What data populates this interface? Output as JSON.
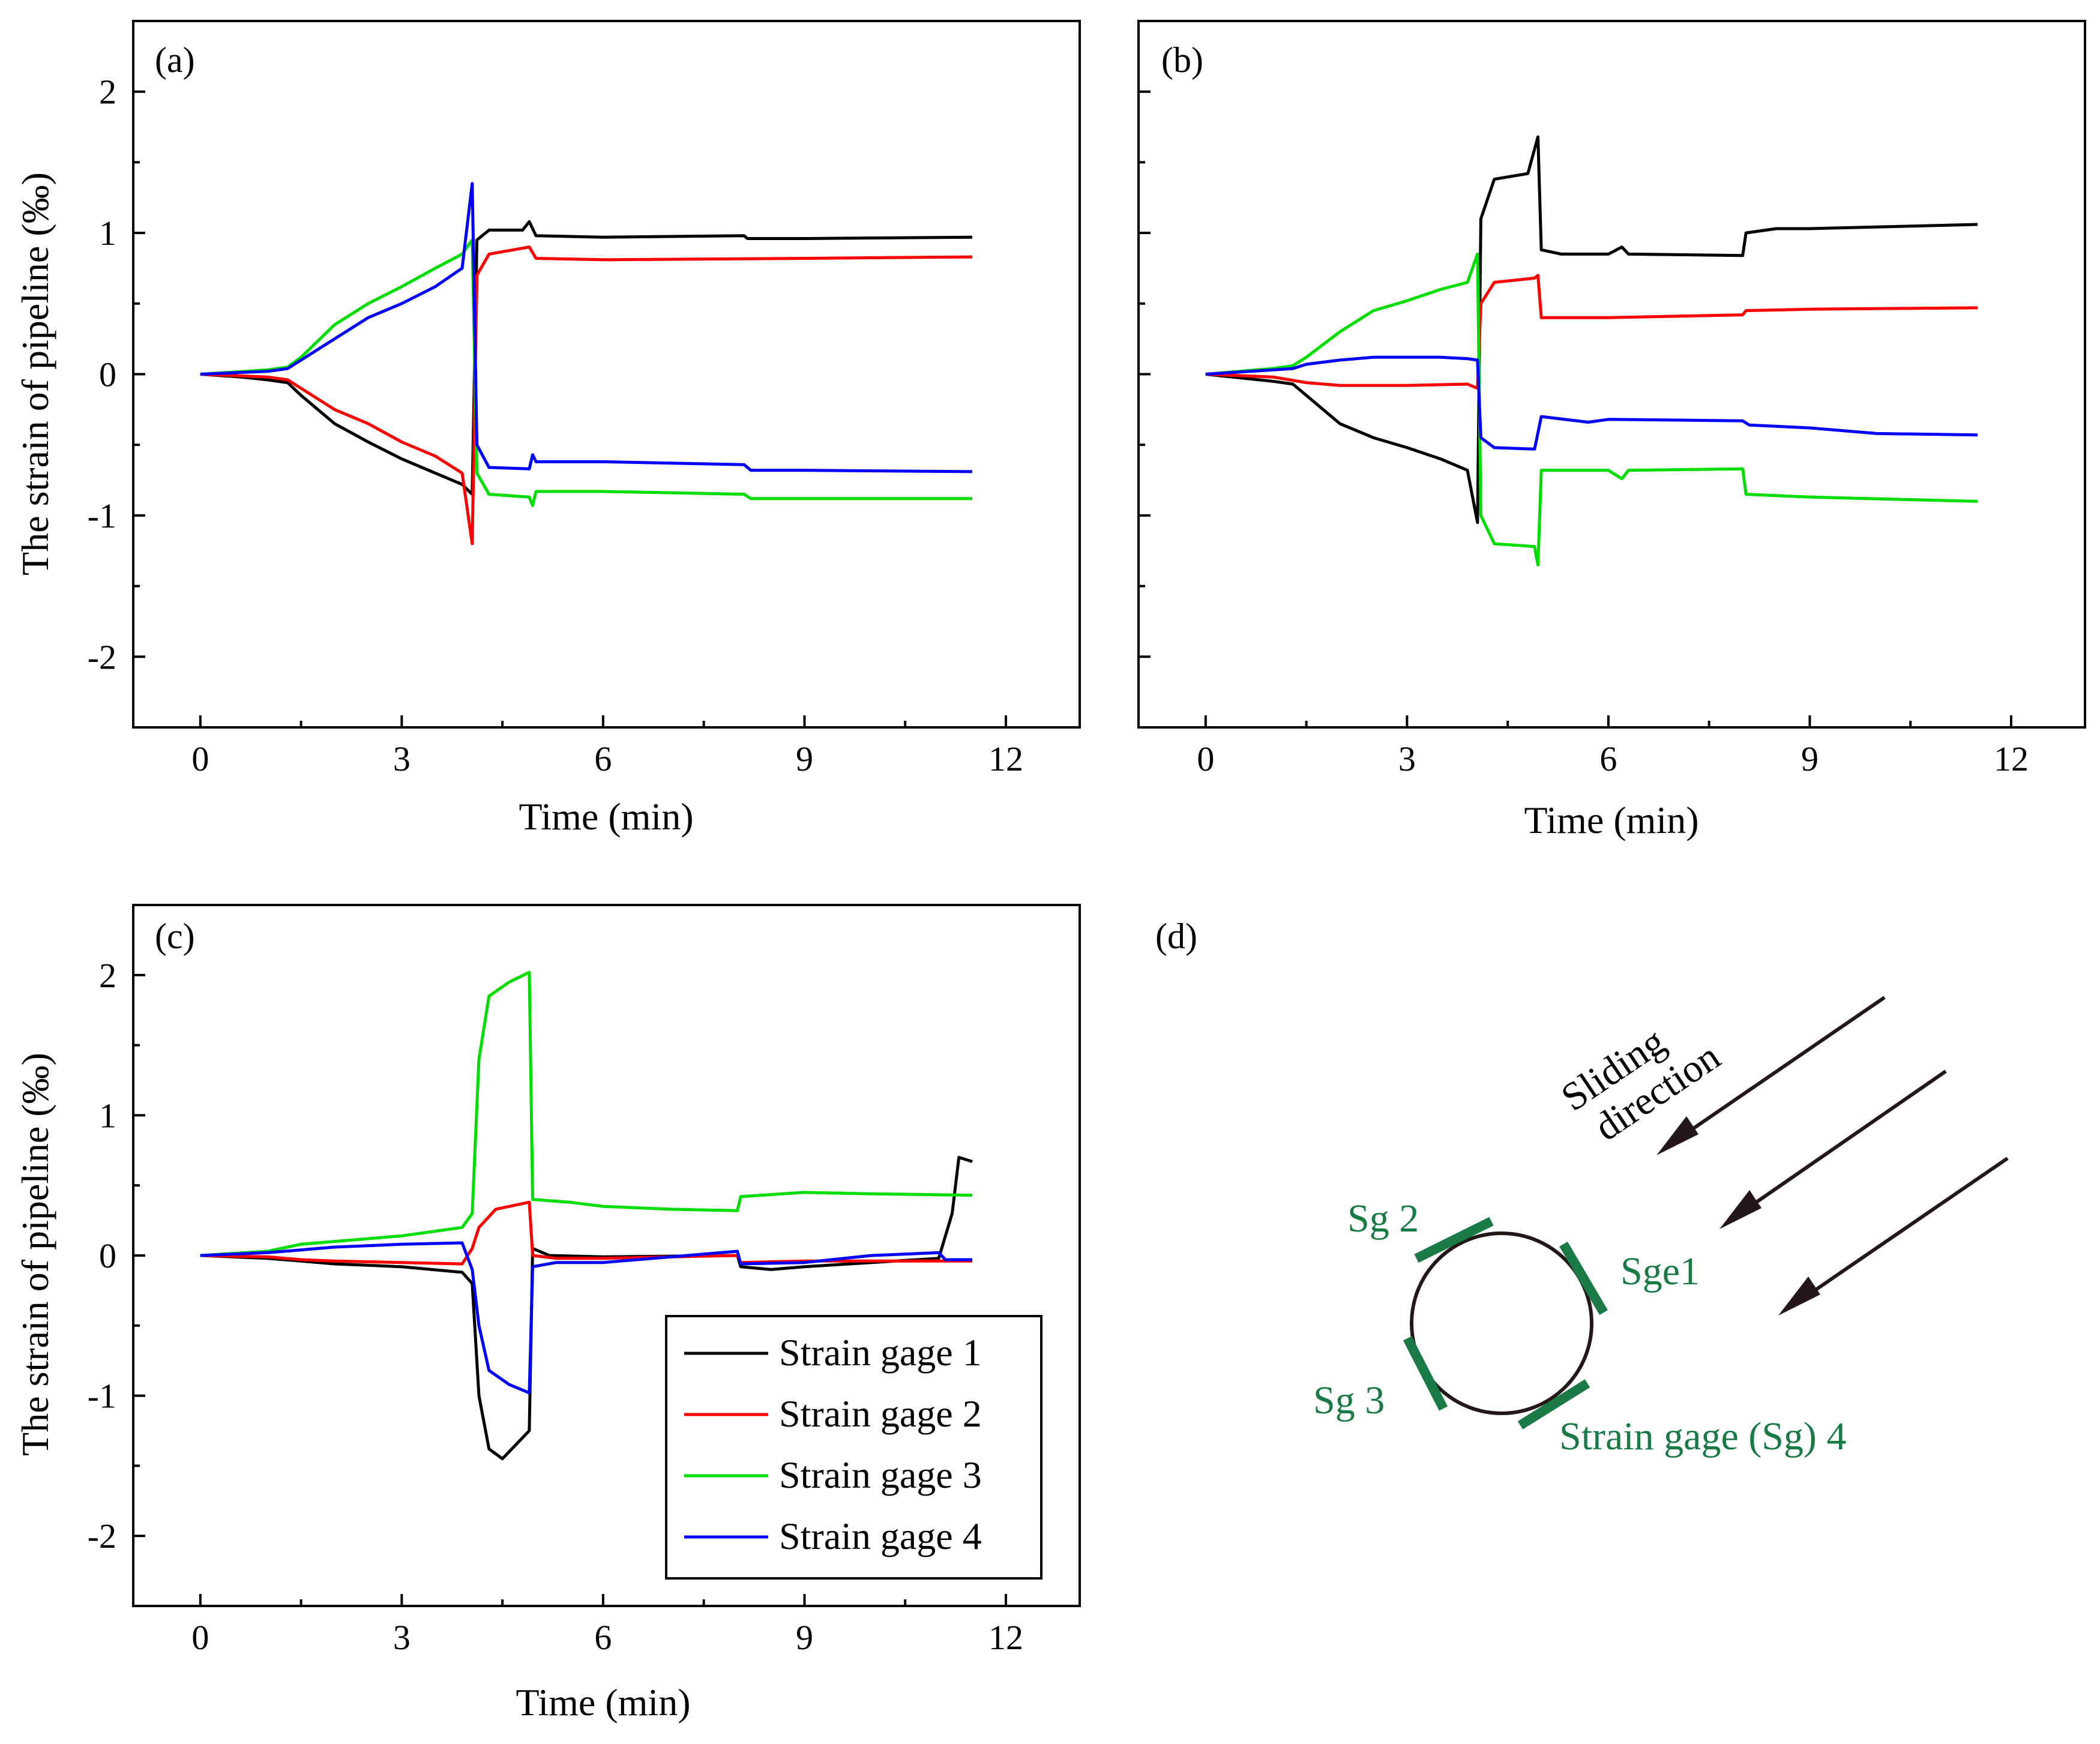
{
  "chart_data": [
    {
      "type": "line",
      "panel_label": "(a)",
      "xlabel": "Time (min)",
      "ylabel": "The strain of pipeline (‰)",
      "xlim": [
        -1,
        13.1
      ],
      "ylim": [
        -2.5,
        2.5
      ],
      "xticks": [
        0,
        3,
        6,
        9,
        12
      ],
      "yticks": [
        2,
        1,
        0,
        -1,
        -2
      ],
      "series": [
        {
          "name": "Strain gage 1",
          "color": "#000000",
          "points": [
            [
              0,
              0
            ],
            [
              0.6,
              -0.02
            ],
            [
              1.0,
              -0.04
            ],
            [
              1.3,
              -0.06
            ],
            [
              1.5,
              -0.15
            ],
            [
              2.0,
              -0.35
            ],
            [
              2.5,
              -0.48
            ],
            [
              3.0,
              -0.6
            ],
            [
              3.5,
              -0.7
            ],
            [
              3.9,
              -0.78
            ],
            [
              4.05,
              -0.85
            ],
            [
              4.12,
              0.95
            ],
            [
              4.3,
              1.02
            ],
            [
              4.8,
              1.02
            ],
            [
              4.9,
              1.08
            ],
            [
              5.0,
              0.98
            ],
            [
              6,
              0.97
            ],
            [
              8.1,
              0.98
            ],
            [
              8.15,
              0.96
            ],
            [
              9,
              0.96
            ],
            [
              11.5,
              0.97
            ]
          ]
        },
        {
          "name": "Strain gage 2",
          "color": "#ff0000",
          "points": [
            [
              0,
              0
            ],
            [
              1.0,
              -0.02
            ],
            [
              1.3,
              -0.04
            ],
            [
              1.5,
              -0.1
            ],
            [
              2.0,
              -0.25
            ],
            [
              2.5,
              -0.35
            ],
            [
              3.0,
              -0.48
            ],
            [
              3.5,
              -0.58
            ],
            [
              3.9,
              -0.7
            ],
            [
              4.05,
              -1.2
            ],
            [
              4.12,
              0.7
            ],
            [
              4.3,
              0.85
            ],
            [
              4.9,
              0.9
            ],
            [
              5.0,
              0.82
            ],
            [
              6,
              0.81
            ],
            [
              9,
              0.82
            ],
            [
              11.5,
              0.83
            ]
          ]
        },
        {
          "name": "Strain gage 3",
          "color": "#00dd00",
          "points": [
            [
              0,
              0
            ],
            [
              1.0,
              0.03
            ],
            [
              1.3,
              0.05
            ],
            [
              1.5,
              0.12
            ],
            [
              2.0,
              0.35
            ],
            [
              2.5,
              0.5
            ],
            [
              3.0,
              0.62
            ],
            [
              3.5,
              0.75
            ],
            [
              3.9,
              0.85
            ],
            [
              4.05,
              0.95
            ],
            [
              4.12,
              -0.7
            ],
            [
              4.3,
              -0.85
            ],
            [
              4.9,
              -0.87
            ],
            [
              4.95,
              -0.93
            ],
            [
              5.0,
              -0.83
            ],
            [
              6,
              -0.83
            ],
            [
              8.1,
              -0.85
            ],
            [
              8.2,
              -0.88
            ],
            [
              9,
              -0.88
            ],
            [
              11.5,
              -0.88
            ]
          ]
        },
        {
          "name": "Strain gage 4",
          "color": "#0000ff",
          "points": [
            [
              0,
              0
            ],
            [
              1.0,
              0.02
            ],
            [
              1.3,
              0.04
            ],
            [
              1.5,
              0.1
            ],
            [
              2.0,
              0.25
            ],
            [
              2.5,
              0.4
            ],
            [
              3.0,
              0.5
            ],
            [
              3.5,
              0.62
            ],
            [
              3.9,
              0.75
            ],
            [
              4.05,
              1.35
            ],
            [
              4.12,
              -0.5
            ],
            [
              4.3,
              -0.66
            ],
            [
              4.9,
              -0.67
            ],
            [
              4.95,
              -0.57
            ],
            [
              5.0,
              -0.62
            ],
            [
              6,
              -0.62
            ],
            [
              8.1,
              -0.64
            ],
            [
              8.2,
              -0.68
            ],
            [
              9,
              -0.68
            ],
            [
              11.5,
              -0.69
            ]
          ]
        }
      ]
    },
    {
      "type": "line",
      "panel_label": "(b)",
      "xlabel": "Time (min)",
      "ylabel": "",
      "xlim": [
        -1,
        13.1
      ],
      "ylim": [
        -2.5,
        2.5
      ],
      "xticks": [
        0,
        3,
        6,
        9,
        12
      ],
      "yticks": [
        2,
        1,
        0,
        -1,
        -2
      ],
      "series": [
        {
          "name": "Strain gage 1",
          "color": "#000000",
          "points": [
            [
              0,
              0
            ],
            [
              1.0,
              -0.05
            ],
            [
              1.3,
              -0.07
            ],
            [
              1.5,
              -0.15
            ],
            [
              2.0,
              -0.35
            ],
            [
              2.5,
              -0.45
            ],
            [
              3.0,
              -0.52
            ],
            [
              3.5,
              -0.6
            ],
            [
              3.9,
              -0.68
            ],
            [
              4.05,
              -1.05
            ],
            [
              4.1,
              1.1
            ],
            [
              4.3,
              1.38
            ],
            [
              4.8,
              1.42
            ],
            [
              4.95,
              1.68
            ],
            [
              5.0,
              0.88
            ],
            [
              5.3,
              0.85
            ],
            [
              6,
              0.85
            ],
            [
              6.2,
              0.9
            ],
            [
              6.3,
              0.85
            ],
            [
              8.0,
              0.84
            ],
            [
              8.05,
              1.0
            ],
            [
              8.5,
              1.03
            ],
            [
              9,
              1.03
            ],
            [
              11.5,
              1.06
            ]
          ]
        },
        {
          "name": "Strain gage 2",
          "color": "#ff0000",
          "points": [
            [
              0,
              0
            ],
            [
              1.0,
              -0.02
            ],
            [
              1.5,
              -0.06
            ],
            [
              2.0,
              -0.08
            ],
            [
              3.0,
              -0.08
            ],
            [
              3.9,
              -0.07
            ],
            [
              4.05,
              -0.1
            ],
            [
              4.1,
              0.5
            ],
            [
              4.3,
              0.65
            ],
            [
              4.9,
              0.68
            ],
            [
              4.95,
              0.7
            ],
            [
              5.0,
              0.4
            ],
            [
              6,
              0.4
            ],
            [
              8.0,
              0.42
            ],
            [
              8.05,
              0.45
            ],
            [
              9,
              0.46
            ],
            [
              11.5,
              0.47
            ]
          ]
        },
        {
          "name": "Strain gage 3",
          "color": "#00dd00",
          "points": [
            [
              0,
              0
            ],
            [
              1.0,
              0.04
            ],
            [
              1.3,
              0.06
            ],
            [
              1.5,
              0.12
            ],
            [
              2.0,
              0.3
            ],
            [
              2.5,
              0.45
            ],
            [
              3.0,
              0.52
            ],
            [
              3.5,
              0.6
            ],
            [
              3.9,
              0.65
            ],
            [
              4.05,
              0.85
            ],
            [
              4.1,
              -1.0
            ],
            [
              4.3,
              -1.2
            ],
            [
              4.9,
              -1.22
            ],
            [
              4.95,
              -1.35
            ],
            [
              5.0,
              -0.68
            ],
            [
              6,
              -0.68
            ],
            [
              6.2,
              -0.74
            ],
            [
              6.3,
              -0.68
            ],
            [
              8.0,
              -0.67
            ],
            [
              8.05,
              -0.85
            ],
            [
              9,
              -0.87
            ],
            [
              11.5,
              -0.9
            ]
          ]
        },
        {
          "name": "Strain gage 4",
          "color": "#0000ff",
          "points": [
            [
              0,
              0
            ],
            [
              1.0,
              0.03
            ],
            [
              1.3,
              0.04
            ],
            [
              1.5,
              0.07
            ],
            [
              2.0,
              0.1
            ],
            [
              2.5,
              0.12
            ],
            [
              3.0,
              0.12
            ],
            [
              3.5,
              0.12
            ],
            [
              3.9,
              0.11
            ],
            [
              4.05,
              0.1
            ],
            [
              4.1,
              -0.45
            ],
            [
              4.3,
              -0.52
            ],
            [
              4.9,
              -0.53
            ],
            [
              5.0,
              -0.3
            ],
            [
              5.7,
              -0.34
            ],
            [
              6,
              -0.32
            ],
            [
              8.0,
              -0.33
            ],
            [
              8.1,
              -0.36
            ],
            [
              9,
              -0.38
            ],
            [
              10,
              -0.42
            ],
            [
              11.5,
              -0.43
            ]
          ]
        }
      ]
    },
    {
      "type": "line",
      "panel_label": "(c)",
      "xlabel": "Time (min)",
      "ylabel": "The strain of pipeline (‰)",
      "xlim": [
        -1,
        13.1
      ],
      "ylim": [
        -2.5,
        2.5
      ],
      "xticks": [
        0,
        3,
        6,
        9,
        12
      ],
      "yticks": [
        2,
        1,
        0,
        -1,
        -2
      ],
      "legend": {
        "position": "lower-right",
        "entries": [
          "Strain gage 1",
          "Strain gage 2",
          "Strain gage 3",
          "Strain gage 4"
        ]
      },
      "series": [
        {
          "name": "Strain gage 1",
          "color": "#000000",
          "points": [
            [
              0,
              0
            ],
            [
              1.0,
              -0.02
            ],
            [
              1.5,
              -0.04
            ],
            [
              2.0,
              -0.06
            ],
            [
              3.0,
              -0.08
            ],
            [
              3.9,
              -0.12
            ],
            [
              4.05,
              -0.2
            ],
            [
              4.15,
              -1.0
            ],
            [
              4.3,
              -1.38
            ],
            [
              4.5,
              -1.45
            ],
            [
              4.7,
              -1.35
            ],
            [
              4.9,
              -1.25
            ],
            [
              4.95,
              0.05
            ],
            [
              5.2,
              0.0
            ],
            [
              6,
              -0.01
            ],
            [
              8.0,
              0.0
            ],
            [
              8.05,
              -0.08
            ],
            [
              8.5,
              -0.1
            ],
            [
              9,
              -0.08
            ],
            [
              10,
              -0.05
            ],
            [
              11.0,
              -0.02
            ],
            [
              11.2,
              0.3
            ],
            [
              11.3,
              0.7
            ],
            [
              11.5,
              0.67
            ]
          ]
        },
        {
          "name": "Strain gage 2",
          "color": "#ff0000",
          "points": [
            [
              0,
              0
            ],
            [
              1.0,
              -0.01
            ],
            [
              1.5,
              -0.03
            ],
            [
              2.0,
              -0.04
            ],
            [
              3.0,
              -0.05
            ],
            [
              3.9,
              -0.06
            ],
            [
              4.05,
              0.05
            ],
            [
              4.15,
              0.2
            ],
            [
              4.4,
              0.33
            ],
            [
              4.9,
              0.38
            ],
            [
              4.95,
              0.0
            ],
            [
              5.3,
              -0.02
            ],
            [
              6,
              -0.02
            ],
            [
              8.0,
              0.0
            ],
            [
              8.05,
              -0.05
            ],
            [
              9,
              -0.04
            ],
            [
              11.5,
              -0.04
            ]
          ]
        },
        {
          "name": "Strain gage 3",
          "color": "#00dd00",
          "points": [
            [
              0,
              0
            ],
            [
              1.0,
              0.03
            ],
            [
              1.5,
              0.08
            ],
            [
              2.0,
              0.1
            ],
            [
              3.0,
              0.14
            ],
            [
              3.9,
              0.2
            ],
            [
              4.05,
              0.3
            ],
            [
              4.15,
              1.4
            ],
            [
              4.3,
              1.85
            ],
            [
              4.6,
              1.95
            ],
            [
              4.9,
              2.02
            ],
            [
              4.95,
              0.4
            ],
            [
              5.5,
              0.38
            ],
            [
              6,
              0.35
            ],
            [
              7,
              0.33
            ],
            [
              8.0,
              0.32
            ],
            [
              8.05,
              0.42
            ],
            [
              9,
              0.45
            ],
            [
              10,
              0.44
            ],
            [
              11.5,
              0.43
            ]
          ]
        },
        {
          "name": "Strain gage 4",
          "color": "#0000ff",
          "points": [
            [
              0,
              0
            ],
            [
              1.0,
              0.02
            ],
            [
              1.5,
              0.04
            ],
            [
              2.0,
              0.06
            ],
            [
              3.0,
              0.08
            ],
            [
              3.9,
              0.09
            ],
            [
              4.05,
              -0.1
            ],
            [
              4.15,
              -0.5
            ],
            [
              4.3,
              -0.82
            ],
            [
              4.6,
              -0.92
            ],
            [
              4.9,
              -0.98
            ],
            [
              4.95,
              -0.08
            ],
            [
              5.3,
              -0.05
            ],
            [
              6,
              -0.05
            ],
            [
              8.0,
              0.03
            ],
            [
              8.05,
              -0.06
            ],
            [
              9,
              -0.05
            ],
            [
              10,
              0.0
            ],
            [
              11.0,
              0.02
            ],
            [
              11.1,
              -0.03
            ],
            [
              11.5,
              -0.03
            ]
          ]
        }
      ]
    }
  ],
  "diagram": {
    "panel_label": "(d)",
    "sliding_label": [
      "Sliding",
      "direction"
    ],
    "gage_labels": {
      "sg1": "Sge1",
      "sg2": "Sg 2",
      "sg3": "Sg 3",
      "sg4": "Strain gage (Sg) 4"
    },
    "gage_color": "#1a7a46"
  }
}
